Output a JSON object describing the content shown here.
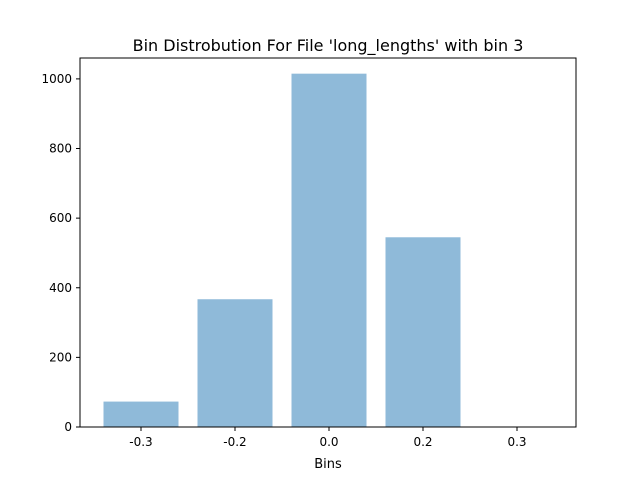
{
  "chart_data": {
    "type": "bar",
    "title": "Bin Distrobution For File 'long_lengths' with bin 3",
    "xlabel": "Bins",
    "ylabel": "",
    "categories": [
      "-0.3",
      "-0.2",
      "0.0",
      "0.2",
      "0.3"
    ],
    "values": [
      73,
      367,
      1015,
      545,
      0
    ],
    "ylim": [
      0,
      1060
    ],
    "yticks": [
      0,
      200,
      400,
      600,
      800,
      1000
    ],
    "grid": false,
    "legend": "none",
    "bar_color": "#8fbad9"
  }
}
